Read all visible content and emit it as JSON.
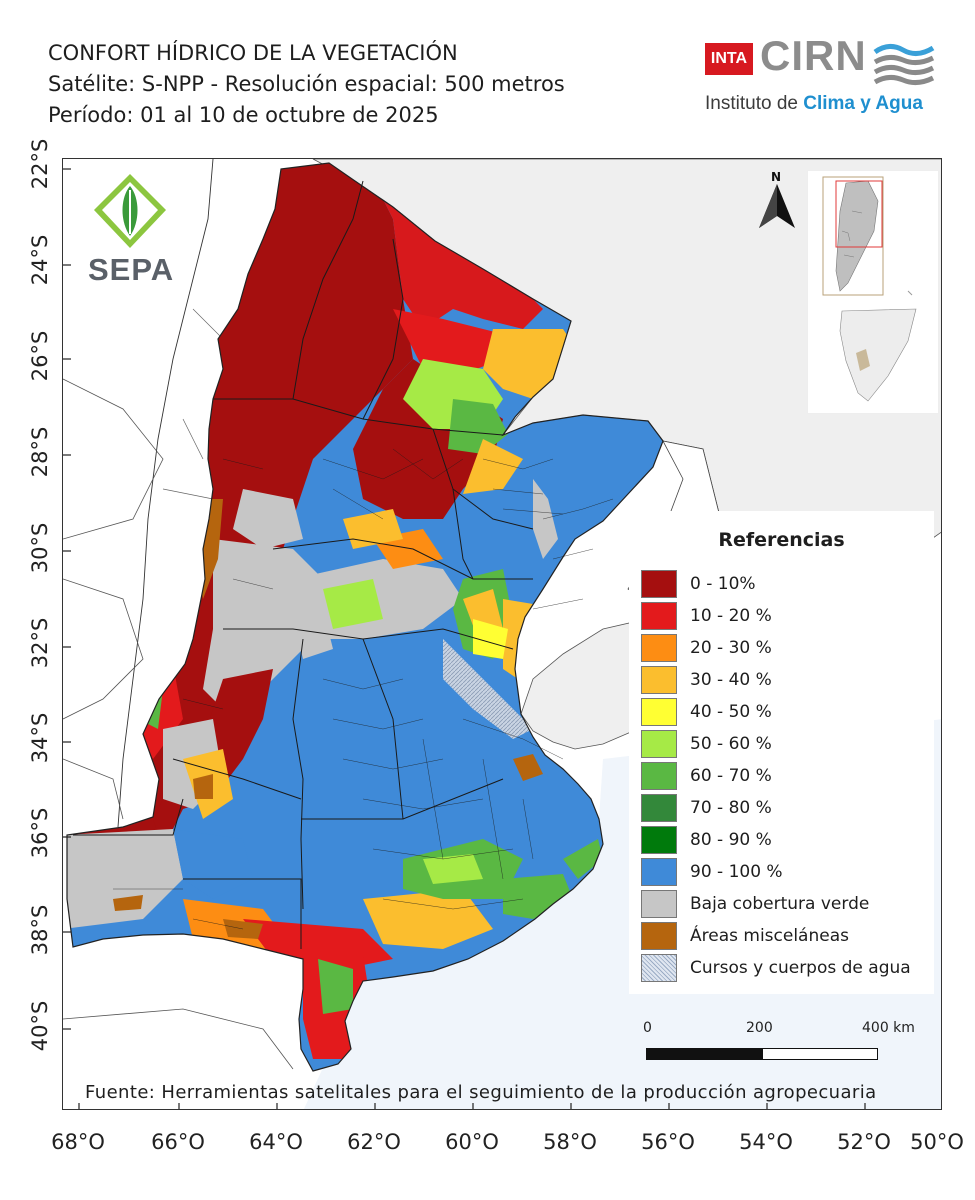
{
  "header": {
    "title": "CONFORT HÍDRICO DE LA VEGETACIÓN",
    "satellite_line": "Satélite: S-NPP - Resolución espacial: 500 metros",
    "period_line": "Período: 01 al 10 de octubre de 2025"
  },
  "logos": {
    "inta": "INTA",
    "cirn": "CIRN",
    "institute_prefix": "Instituto de ",
    "institute_accent": "Clima y Agua",
    "sepa": "SEPA"
  },
  "north_arrow": {
    "letter": "N"
  },
  "latitude_labels": [
    "22°S",
    "24°S",
    "26°S",
    "28°S",
    "30°S",
    "32°S",
    "34°S",
    "36°S",
    "38°S",
    "40°S"
  ],
  "longitude_labels": [
    "68°O",
    "66°O",
    "64°O",
    "62°O",
    "60°O",
    "58°O",
    "56°O",
    "54°O",
    "52°O",
    "50°O"
  ],
  "legend": {
    "title": "Referencias",
    "items": [
      {
        "label": "0 - 10%",
        "color": "#a50f0f"
      },
      {
        "label": "10 - 20 %",
        "color": "#e31a1c"
      },
      {
        "label": "20 - 30 %",
        "color": "#fd8d13"
      },
      {
        "label": "30 - 40 %",
        "color": "#fbbe2e"
      },
      {
        "label": "40 - 50 %",
        "color": "#ffff33"
      },
      {
        "label": "50 - 60 %",
        "color": "#a6ea46"
      },
      {
        "label": "60 - 70 %",
        "color": "#5ab843"
      },
      {
        "label": "70 - 80 %",
        "color": "#33883a"
      },
      {
        "label": "80 - 90 %",
        "color": "#007a0c"
      },
      {
        "label": "90 - 100 %",
        "color": "#3f8ad8"
      },
      {
        "label": "Baja cobertura verde",
        "color": "#c6c6c6"
      },
      {
        "label": "Áreas misceláneas",
        "color": "#b5650e"
      },
      {
        "label": "Cursos y cuerpos de agua",
        "color": "#b7c7dc"
      }
    ]
  },
  "scale_bar": {
    "labels": [
      "0",
      "200",
      "400 km"
    ]
  },
  "source": "Fuente: Herramientas satelitales para el seguimiento de la producción agropecuaria",
  "colors": {
    "sea": "#f0f5fb",
    "neighbor": "#efefef",
    "boundary": "#222222"
  }
}
